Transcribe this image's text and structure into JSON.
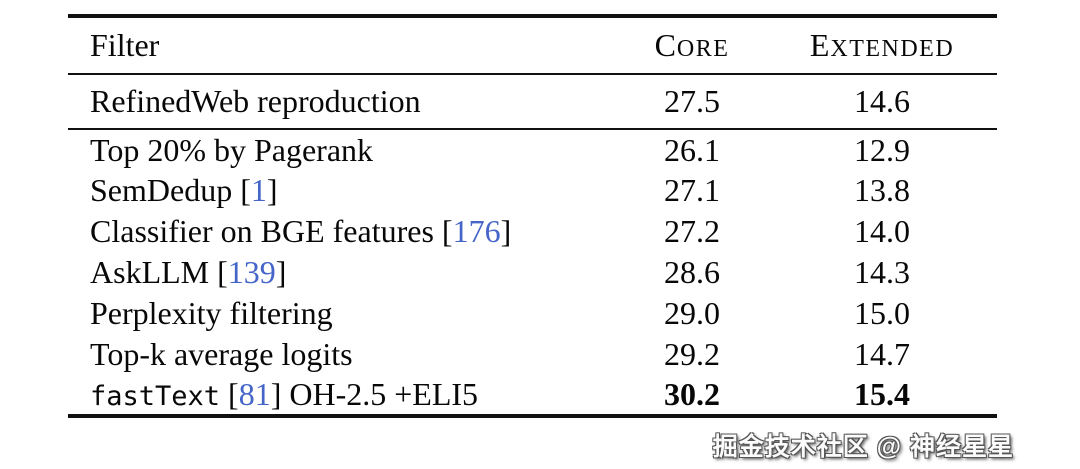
{
  "table": {
    "header": {
      "filter": "Filter",
      "core": {
        "initial": "C",
        "rest": "ORE"
      },
      "extended": {
        "initial": "E",
        "rest": "XTENDED"
      }
    },
    "rows": [
      {
        "section": "baseline",
        "label": [
          {
            "t": "RefinedWeb reproduction",
            "s": "n"
          }
        ],
        "core": "27.5",
        "extended": "14.6",
        "bold": false
      },
      {
        "section": "filters",
        "label": [
          {
            "t": "Top 20% by Pagerank",
            "s": "n"
          }
        ],
        "core": "26.1",
        "extended": "12.9",
        "bold": false
      },
      {
        "section": "filters",
        "label": [
          {
            "t": "SemDedup [",
            "s": "n"
          },
          {
            "t": "1",
            "s": "c"
          },
          {
            "t": "]",
            "s": "n"
          }
        ],
        "core": "27.1",
        "extended": "13.8",
        "bold": false
      },
      {
        "section": "filters",
        "label": [
          {
            "t": "Classifier on BGE features [",
            "s": "n"
          },
          {
            "t": "176",
            "s": "c"
          },
          {
            "t": "]",
            "s": "n"
          }
        ],
        "core": "27.2",
        "extended": "14.0",
        "bold": false
      },
      {
        "section": "filters",
        "label": [
          {
            "t": "AskLLM [",
            "s": "n"
          },
          {
            "t": "139",
            "s": "c"
          },
          {
            "t": "]",
            "s": "n"
          }
        ],
        "core": "28.6",
        "extended": "14.3",
        "bold": false
      },
      {
        "section": "filters",
        "label": [
          {
            "t": "Perplexity filtering",
            "s": "n"
          }
        ],
        "core": "29.0",
        "extended": "15.0",
        "bold": false
      },
      {
        "section": "filters",
        "label": [
          {
            "t": "Top-k average logits",
            "s": "n"
          }
        ],
        "core": "29.2",
        "extended": "14.7",
        "bold": false
      },
      {
        "section": "filters",
        "label": [
          {
            "t": "fastText",
            "s": "m"
          },
          {
            "t": " [",
            "s": "n"
          },
          {
            "t": "81",
            "s": "c"
          },
          {
            "t": "] OH-2.5 +ELI5",
            "s": "n"
          }
        ],
        "core": "30.2",
        "extended": "15.4",
        "bold": true
      }
    ]
  },
  "watermark": "掘金技术社区 @ 神经星星",
  "colors": {
    "citation_blue": "#4565c8",
    "text": "#080808",
    "rule": "#111111"
  }
}
